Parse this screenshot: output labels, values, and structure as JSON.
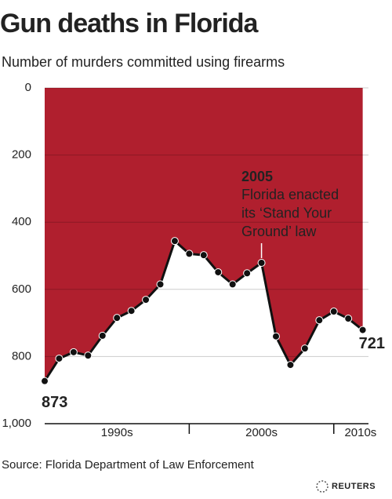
{
  "chart_data": {
    "type": "area",
    "title": "Gun deaths in Florida",
    "subtitle": "Number of murders committed using firearms",
    "source": "Source: Florida Department of Law Enforcement",
    "credit": "REUTERS",
    "x": [
      1990,
      1991,
      1992,
      1993,
      1994,
      1995,
      1996,
      1997,
      1998,
      1999,
      2000,
      2001,
      2002,
      2003,
      2004,
      2005,
      2006,
      2007,
      2008,
      2009,
      2010,
      2011,
      2012
    ],
    "values": [
      873,
      806,
      787,
      797,
      738,
      685,
      664,
      631,
      585,
      456,
      494,
      498,
      549,
      585,
      552,
      521,
      740,
      825,
      776,
      692,
      666,
      687,
      721
    ],
    "color": "#b01f2e",
    "xlim": [
      1990,
      2012.4
    ],
    "xticks": [
      2000,
      2010
    ],
    "x_period_labels": [
      "1990s",
      "2000s",
      "2010s"
    ],
    "ylim": [
      1000,
      0
    ],
    "yticks": [
      0,
      200,
      400,
      600,
      800,
      {
        "value": 1000,
        "label": "1,000"
      }
    ],
    "grid": true,
    "annotation": {
      "x": 2005,
      "title": "2005",
      "lines": [
        "Florida enacted",
        "its ‘Stand Your",
        "Ground’ law"
      ]
    }
  }
}
